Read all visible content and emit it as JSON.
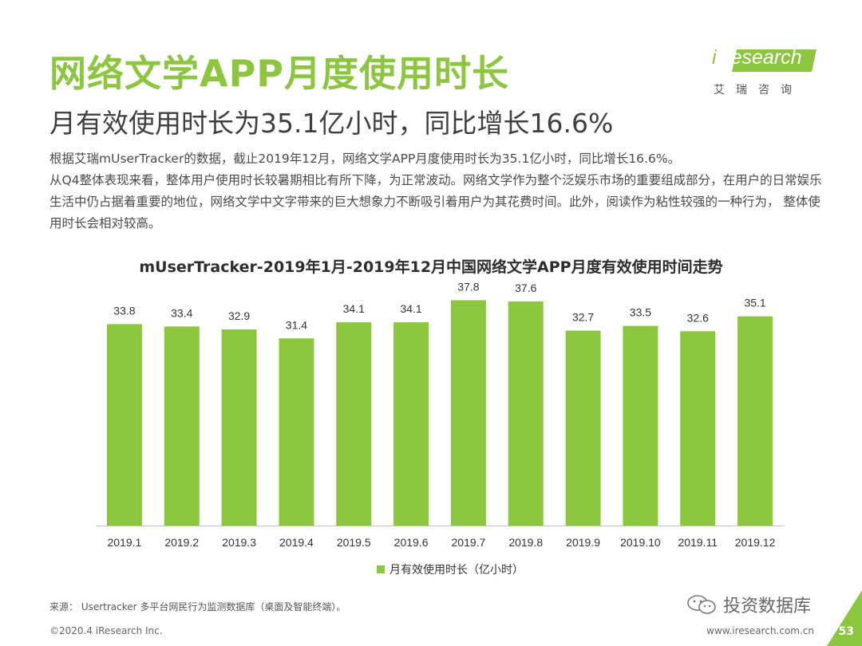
{
  "header": {
    "title": "网络文学APP月度使用时长",
    "subtitle": "月有效使用时长为35.1亿小时，同比增长16.6%"
  },
  "logo": {
    "word_prefix": "i",
    "word_main": "Research",
    "cn": "艾瑞咨询"
  },
  "description": [
    "根据艾瑞mUserTracker的数据，截止2019年12月，网络文学APP月度使用时长为35.1亿小时，同比增长16.6%。",
    "从Q4整体表现来看，整体用户使用时长较暑期相比有所下降，为正常波动。网络文学作为整个泛娱乐市场的重要组成部分，在用户的日常娱乐生活中仍占据着重要的地位，网络文学中文字带来的巨大想象力不断吸引着用户为其花费时间。此外，阅读作为粘性较强的一种行为， 整体使用时长会相对较高。"
  ],
  "chart_data": {
    "type": "bar",
    "title": "mUserTracker-2019年1月-2019年12月中国网络文学APP月度有效使用时间走势",
    "categories": [
      "2019.1",
      "2019.2",
      "2019.3",
      "2019.4",
      "2019.5",
      "2019.6",
      "2019.7",
      "2019.8",
      "2019.9",
      "2019.10",
      "2019.11",
      "2019.12"
    ],
    "series": [
      {
        "name": "月有效使用时长（亿小时）",
        "color": "#8cc63f",
        "values": [
          33.8,
          33.4,
          32.9,
          31.4,
          34.1,
          34.1,
          37.8,
          37.6,
          32.7,
          33.5,
          32.6,
          35.1
        ]
      }
    ],
    "ylim": [
      0,
      40
    ],
    "grid": false,
    "legend": "bottom"
  },
  "footer": {
    "source": "来源： Usertracker 多平台网民行为监测数据库（桌面及智能终端）。",
    "copyright": "©2020.4 iResearch Inc.",
    "site": "www.iresearch.com.cn",
    "watermark": "投资数据库",
    "page": "53"
  },
  "colors": {
    "accent": "#8cc63f",
    "text": "#3a3a3a"
  }
}
